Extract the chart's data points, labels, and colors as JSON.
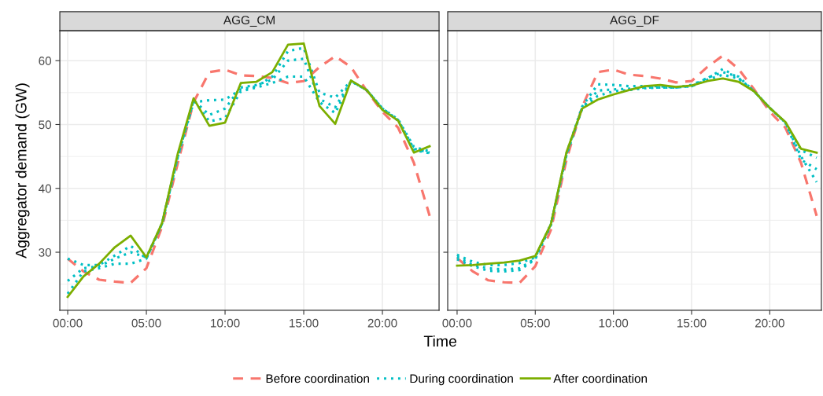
{
  "chart_data": [
    {
      "type": "line",
      "title": "AGG_CM",
      "ylabel": "Aggregator demand (GW)",
      "xlabel": "Time",
      "legend": "bottom",
      "grid": true,
      "x": [
        0,
        1,
        2,
        3,
        4,
        5,
        6,
        7,
        8,
        9,
        10,
        11,
        12,
        13,
        14,
        15,
        16,
        17,
        18,
        19,
        20,
        21,
        22,
        23
      ],
      "xlim": [
        -0.5,
        23.6
      ],
      "ylim": [
        20.9,
        64.7
      ],
      "xticks": [
        {
          "value": 0,
          "label": "00:00"
        },
        {
          "value": 5,
          "label": "05:00"
        },
        {
          "value": 10,
          "label": "10:00"
        },
        {
          "value": 15,
          "label": "15:00"
        },
        {
          "value": 20,
          "label": "20:00"
        }
      ],
      "yticks": [
        30,
        40,
        50,
        60
      ],
      "series": [
        {
          "name": "Before coordination",
          "color": "#f8766d",
          "line_style": "dashed",
          "values": [
            29.0,
            27.0,
            25.7,
            25.4,
            25.2,
            27.5,
            34.0,
            44.0,
            53.5,
            58.2,
            58.6,
            57.7,
            57.6,
            57.3,
            56.5,
            56.8,
            59.0,
            60.7,
            59.0,
            55.3,
            52.0,
            49.5,
            44.0,
            35.7
          ]
        },
        {
          "name": "During coordination",
          "color": "#00bfc4",
          "line_style": "dotted",
          "values": [
            29.0,
            28.0,
            28.0,
            29.5,
            31.0,
            29.0,
            34.5,
            45.0,
            53.5,
            53.8,
            53.9,
            55.5,
            56.0,
            57.5,
            61.5,
            62.0,
            55.0,
            54.2,
            56.8,
            55.4,
            52.5,
            50.8,
            46.5,
            45.8
          ]
        },
        {
          "color": "#00bfc4",
          "line_style": "dotted",
          "values": [
            25.5,
            27.5,
            27.8,
            29.0,
            30.0,
            29.2,
            34.5,
            45.0,
            53.8,
            51.5,
            52.5,
            55.8,
            56.2,
            57.0,
            60.0,
            60.3,
            54.0,
            52.7,
            56.8,
            55.4,
            52.5,
            50.7,
            46.2,
            45.6
          ]
        },
        {
          "color": "#00bfc4",
          "line_style": "dotted",
          "values": [
            23.5,
            27.0,
            27.5,
            28.2,
            28.2,
            29.0,
            34.5,
            45.0,
            53.9,
            50.5,
            51.0,
            55.2,
            55.8,
            56.5,
            57.5,
            57.5,
            53.5,
            51.8,
            56.8,
            55.4,
            52.5,
            50.6,
            46.0,
            45.5
          ]
        },
        {
          "name": "After coordination",
          "color": "#7cae00",
          "line_style": "solid",
          "values": [
            23.0,
            26.2,
            28.2,
            30.8,
            32.6,
            29.2,
            34.6,
            45.5,
            54.1,
            49.8,
            50.3,
            56.5,
            56.7,
            58.2,
            62.5,
            62.7,
            52.9,
            50.1,
            56.9,
            55.4,
            52.3,
            50.6,
            45.6,
            46.6
          ]
        }
      ]
    },
    {
      "type": "line",
      "title": "AGG_DF",
      "grid": true,
      "tick_labels": "x",
      "x": [
        0,
        1,
        2,
        3,
        4,
        5,
        6,
        7,
        8,
        9,
        10,
        11,
        12,
        13,
        14,
        15,
        16,
        17,
        18,
        19,
        20,
        21,
        22,
        23
      ],
      "xlim": [
        -0.6,
        23.3
      ],
      "ylim": [
        20.9,
        64.7
      ],
      "xticks": [
        {
          "value": 0,
          "label": "00:00"
        },
        {
          "value": 5,
          "label": "05:00"
        },
        {
          "value": 10,
          "label": "10:00"
        },
        {
          "value": 15,
          "label": "15:00"
        },
        {
          "value": 20,
          "label": "20:00"
        }
      ],
      "yticks": [
        30,
        40,
        50,
        60
      ],
      "series": [
        {
          "name": "Before coordination",
          "color": "#f8766d",
          "line_style": "dashed",
          "values": [
            29.1,
            27.0,
            25.6,
            25.3,
            25.2,
            27.8,
            33.5,
            44.5,
            52.8,
            58.2,
            58.6,
            57.8,
            57.6,
            57.2,
            56.6,
            56.8,
            59.0,
            60.8,
            58.7,
            55.5,
            52.0,
            49.5,
            44.0,
            35.7
          ]
        },
        {
          "name": "During coordination",
          "color": "#00bfc4",
          "line_style": "dotted",
          "values": [
            29.6,
            28.5,
            28.0,
            28.0,
            28.3,
            29.2,
            34.4,
            45.5,
            52.8,
            56.3,
            56.2,
            56.0,
            56.0,
            56.0,
            55.8,
            56.2,
            57.2,
            58.7,
            57.3,
            55.2,
            52.6,
            50.3,
            46.0,
            44.8
          ]
        },
        {
          "color": "#00bfc4",
          "line_style": "dotted",
          "values": [
            29.3,
            28.0,
            27.5,
            27.3,
            27.5,
            29.0,
            34.3,
            45.3,
            52.6,
            55.3,
            55.5,
            55.6,
            55.8,
            55.8,
            55.8,
            56.0,
            57.3,
            58.2,
            57.5,
            55.2,
            52.6,
            50.3,
            45.0,
            41.0
          ]
        },
        {
          "color": "#00bfc4",
          "line_style": "dotted",
          "values": [
            28.9,
            27.8,
            27.1,
            27.0,
            27.2,
            28.9,
            34.3,
            45.3,
            52.5,
            54.5,
            55.2,
            55.4,
            55.7,
            55.8,
            55.8,
            56.0,
            57.0,
            57.8,
            57.2,
            55.2,
            52.6,
            50.3,
            44.5,
            43.0
          ]
        },
        {
          "name": "After coordination",
          "color": "#7cae00",
          "line_style": "solid",
          "values": [
            27.9,
            28.0,
            28.2,
            28.4,
            28.7,
            29.4,
            34.4,
            45.7,
            52.5,
            53.9,
            54.7,
            55.4,
            56.0,
            56.2,
            55.9,
            56.1,
            56.8,
            57.2,
            56.7,
            55.2,
            52.6,
            50.4,
            46.2,
            45.6
          ]
        }
      ]
    }
  ]
}
